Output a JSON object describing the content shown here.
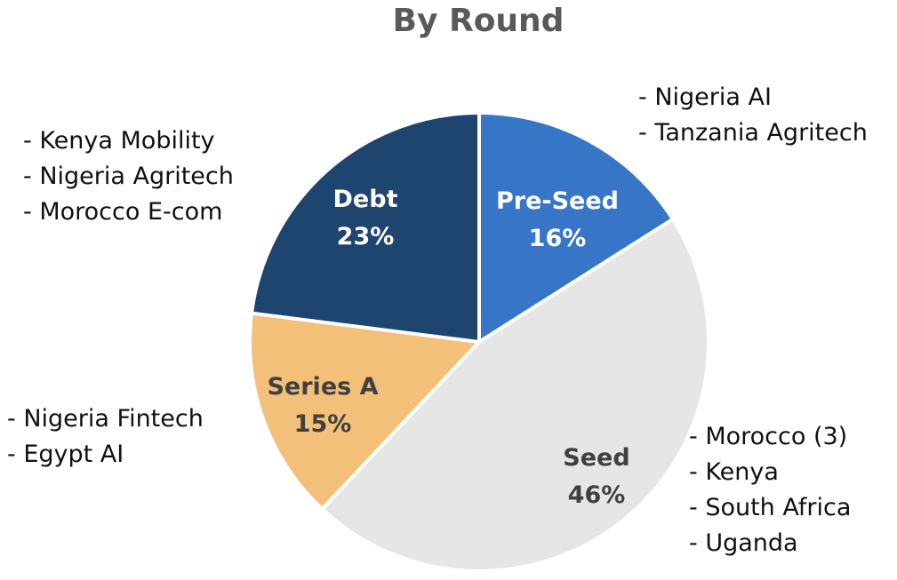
{
  "chart_data": {
    "type": "pie",
    "title": "By Round",
    "slices": [
      {
        "name": "Pre-Seed",
        "percent_label": "16%",
        "value": 16,
        "color": "#3776C6",
        "text_color": "#ffffff",
        "items": [
          "- Nigeria AI",
          "- Tanzania Agritech"
        ]
      },
      {
        "name": "Seed",
        "percent_label": "46%",
        "value": 46,
        "color": "#E6E6E6",
        "text_color": "#404040",
        "items": [
          "- Morocco (3)",
          "- Kenya",
          "- South Africa",
          "- Uganda"
        ]
      },
      {
        "name": "Series A",
        "percent_label": "15%",
        "value": 15,
        "color": "#F2C079",
        "text_color": "#404040",
        "items": [
          "- Nigeria Fintech",
          "- Egypt AI"
        ]
      },
      {
        "name": "Debt",
        "percent_label": "23%",
        "value": 23,
        "color": "#1E4570",
        "text_color": "#ffffff",
        "items": [
          "- Kenya Mobility",
          "- Nigeria Agritech",
          "- Morocco E-com"
        ]
      }
    ],
    "start_angle_deg": 0,
    "direction": "clockwise",
    "slice_separator_color": "#ffffff"
  }
}
